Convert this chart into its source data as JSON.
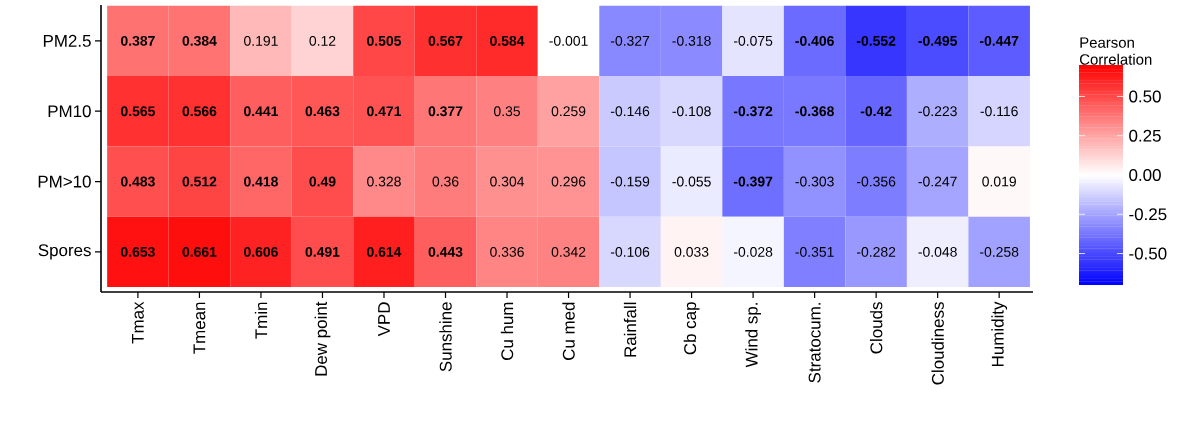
{
  "chart_data": {
    "type": "heatmap",
    "clabel": "Pearson Correlation",
    "categories": [
      "Tmax",
      "Tmean",
      "Tmin",
      "Dew point",
      "VPD",
      "Sunshine",
      "Cu hum",
      "Cu med",
      "Rainfall",
      "Cb cap",
      "Wind sp.",
      "Stratocum.",
      "Clouds",
      "Cloudiness",
      "Humidity"
    ],
    "y_categories": [
      "PM2.5",
      "PM10",
      "PM>10",
      "Spores"
    ],
    "cells": [
      [
        0.387,
        0.384,
        0.191,
        0.12,
        0.505,
        0.567,
        0.584,
        -0.001,
        -0.327,
        -0.318,
        -0.075,
        -0.406,
        -0.552,
        -0.495,
        -0.447
      ],
      [
        0.565,
        0.566,
        0.441,
        0.463,
        0.471,
        0.377,
        0.35,
        0.259,
        -0.146,
        -0.108,
        -0.372,
        -0.368,
        -0.42,
        -0.223,
        -0.116
      ],
      [
        0.483,
        0.512,
        0.418,
        0.49,
        0.328,
        0.36,
        0.304,
        0.296,
        -0.159,
        -0.055,
        -0.397,
        -0.303,
        -0.356,
        -0.247,
        0.019
      ],
      [
        0.653,
        0.661,
        0.606,
        0.491,
        0.614,
        0.443,
        0.336,
        0.342,
        -0.106,
        0.033,
        -0.028,
        -0.351,
        -0.282,
        -0.048,
        -0.258
      ]
    ],
    "cell_labels": [
      [
        "**0.387**",
        "**0.384**",
        "0.191",
        "0.12",
        "**0.505**",
        "**0.567**",
        "**0.584**",
        "-0.001",
        "-0.327",
        "-0.318",
        "-0.075",
        "**-0.406**",
        "**-0.552**",
        "**-0.495**",
        "**-0.447**"
      ],
      [
        "**0.565**",
        "**0.566**",
        "**0.441**",
        "**0.463**",
        "**0.471**",
        "**0.377**",
        "0.35",
        "0.259",
        "-0.146",
        "-0.108",
        "**-0.372**",
        "**-0.368**",
        "**-0.42**",
        "-0.223",
        "-0.116"
      ],
      [
        "**0.483**",
        "**0.512**",
        "**0.418**",
        "**0.49**",
        "0.328",
        "0.36",
        "0.304",
        "0.296",
        "-0.159",
        "-0.055",
        "**-0.397**",
        "-0.303",
        "-0.356",
        "-0.247",
        "0.019"
      ],
      [
        "**0.653**",
        "**0.661**",
        "**0.606**",
        "**0.491**",
        "**0.614**",
        "**0.443**",
        "0.336",
        "0.342",
        "-0.106",
        "0.033",
        "-0.028",
        "-0.351",
        "-0.282",
        "-0.048",
        "-0.258"
      ]
    ],
    "clim": [
      -0.7,
      0.7
    ],
    "cticks": [
      {
        "value": -0.5,
        "label": "-0.50"
      },
      {
        "value": -0.25,
        "label": "-0.25"
      },
      {
        "value": 0,
        "label": "0.00"
      },
      {
        "value": 0.25,
        "label": "0.25"
      },
      {
        "value": 0.5,
        "label": "0.50"
      }
    ]
  }
}
